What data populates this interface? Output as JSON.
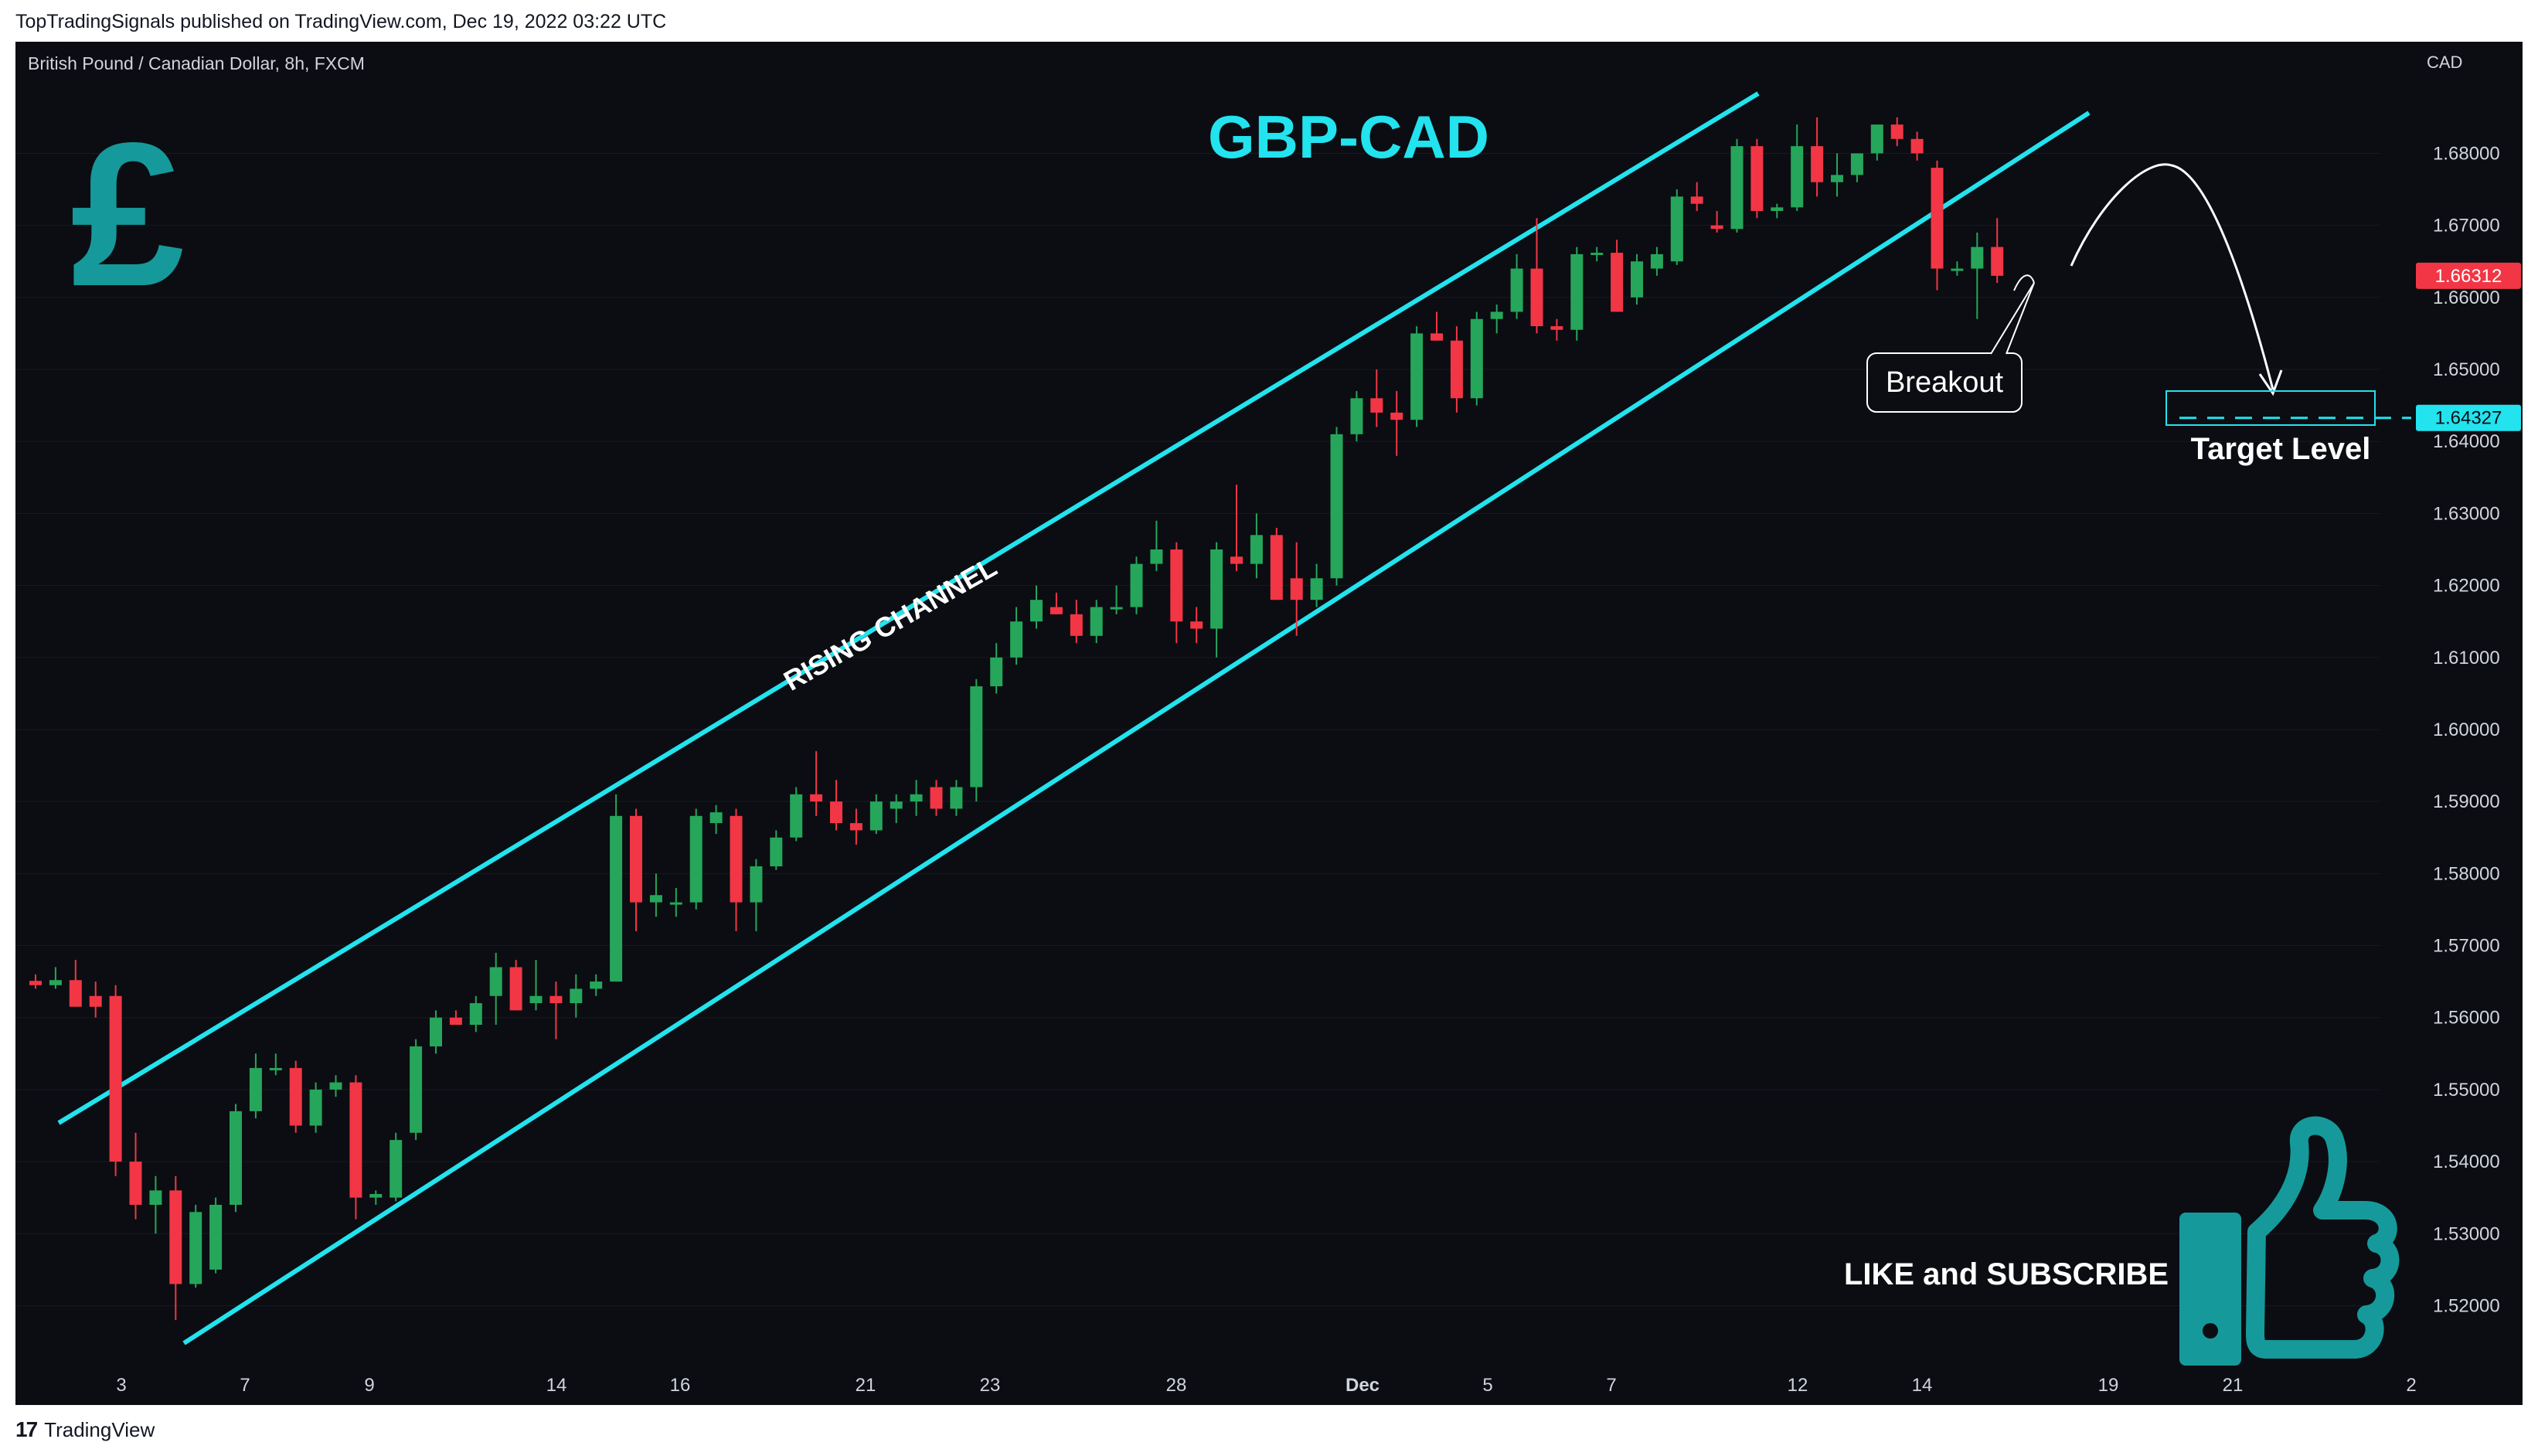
{
  "header": {
    "published": "TopTradingSignals published on TradingView.com, Dec 19, 2022 03:22 UTC"
  },
  "footer": {
    "brand": "TradingView",
    "logo_glyph": "17"
  },
  "chart_header": {
    "symbol": "British Pound / Canadian Dollar, 8h, FXCM",
    "currency": "CAD"
  },
  "annotations": {
    "title": "GBP-CAD",
    "pound_glyph": "£",
    "channel_label": "RISING CHANNEL",
    "breakout": "Breakout",
    "target": "Target Level",
    "cta": "LIKE and SUBSCRIBE"
  },
  "colors": {
    "background": "#0b0d12",
    "bull": "#26a65b",
    "bear": "#f23645",
    "channel": "#22e3ee",
    "accent_teal": "#1aa3a3",
    "axis_text": "#d1d4dc"
  },
  "chart_data": {
    "type": "candlestick",
    "timeframe": "8h",
    "ylim": [
      1.512,
      1.6955
    ],
    "y_ticks": [
      "1.52000",
      "1.53000",
      "1.54000",
      "1.55000",
      "1.56000",
      "1.57000",
      "1.58000",
      "1.59000",
      "1.60000",
      "1.61000",
      "1.62000",
      "1.63000",
      "1.64000",
      "1.65000",
      "1.66000",
      "1.67000",
      "1.68000"
    ],
    "x_ticks": [
      "3",
      "7",
      "9",
      "14",
      "16",
      "21",
      "23",
      "28",
      "Dec",
      "5",
      "7",
      "12",
      "14",
      "19",
      "21",
      "2"
    ],
    "last_price": "1.66312",
    "target_price": "1.64327",
    "target_value": 1.64327,
    "ohlc": [
      [
        1.5651,
        1.566,
        1.564,
        1.5645
      ],
      [
        1.5645,
        1.567,
        1.564,
        1.5652
      ],
      [
        1.5652,
        1.568,
        1.563,
        1.5615
      ],
      [
        1.563,
        1.565,
        1.56,
        1.5615
      ],
      [
        1.563,
        1.5645,
        1.538,
        1.54
      ],
      [
        1.54,
        1.544,
        1.532,
        1.534
      ],
      [
        1.534,
        1.538,
        1.53,
        1.536
      ],
      [
        1.536,
        1.538,
        1.518,
        1.523
      ],
      [
        1.523,
        1.534,
        1.5225,
        1.533
      ],
      [
        1.525,
        1.535,
        1.5245,
        1.534
      ],
      [
        1.534,
        1.548,
        1.533,
        1.547
      ],
      [
        1.547,
        1.555,
        1.546,
        1.553
      ],
      [
        1.553,
        1.555,
        1.552,
        1.553
      ],
      [
        1.553,
        1.554,
        1.544,
        1.545
      ],
      [
        1.545,
        1.551,
        1.544,
        1.55
      ],
      [
        1.55,
        1.552,
        1.549,
        1.551
      ],
      [
        1.551,
        1.552,
        1.532,
        1.535
      ],
      [
        1.535,
        1.536,
        1.534,
        1.5355
      ],
      [
        1.535,
        1.544,
        1.5345,
        1.543
      ],
      [
        1.544,
        1.557,
        1.543,
        1.556
      ],
      [
        1.556,
        1.561,
        1.555,
        1.56
      ],
      [
        1.56,
        1.561,
        1.559,
        1.559
      ],
      [
        1.559,
        1.563,
        1.558,
        1.562
      ],
      [
        1.563,
        1.569,
        1.559,
        1.567
      ],
      [
        1.567,
        1.568,
        1.561,
        1.561
      ],
      [
        1.562,
        1.568,
        1.561,
        1.563
      ],
      [
        1.563,
        1.565,
        1.557,
        1.562
      ],
      [
        1.562,
        1.566,
        1.56,
        1.564
      ],
      [
        1.564,
        1.566,
        1.563,
        1.565
      ],
      [
        1.565,
        1.591,
        1.565,
        1.588
      ],
      [
        1.588,
        1.589,
        1.572,
        1.576
      ],
      [
        1.576,
        1.58,
        1.574,
        1.577
      ],
      [
        1.576,
        1.578,
        1.574,
        1.576
      ],
      [
        1.576,
        1.589,
        1.575,
        1.588
      ],
      [
        1.587,
        1.5895,
        1.5855,
        1.5885
      ],
      [
        1.588,
        1.589,
        1.572,
        1.576
      ],
      [
        1.576,
        1.582,
        1.572,
        1.581
      ],
      [
        1.581,
        1.586,
        1.5805,
        1.585
      ],
      [
        1.585,
        1.592,
        1.5845,
        1.591
      ],
      [
        1.591,
        1.597,
        1.588,
        1.59
      ],
      [
        1.59,
        1.593,
        1.586,
        1.587
      ],
      [
        1.587,
        1.589,
        1.584,
        1.586
      ],
      [
        1.586,
        1.591,
        1.5855,
        1.59
      ],
      [
        1.589,
        1.591,
        1.587,
        1.59
      ],
      [
        1.59,
        1.593,
        1.588,
        1.591
      ],
      [
        1.592,
        1.593,
        1.588,
        1.589
      ],
      [
        1.589,
        1.593,
        1.588,
        1.592
      ],
      [
        1.592,
        1.607,
        1.59,
        1.606
      ],
      [
        1.606,
        1.612,
        1.605,
        1.61
      ],
      [
        1.61,
        1.617,
        1.609,
        1.615
      ],
      [
        1.615,
        1.62,
        1.614,
        1.618
      ],
      [
        1.617,
        1.619,
        1.616,
        1.616
      ],
      [
        1.616,
        1.618,
        1.612,
        1.613
      ],
      [
        1.613,
        1.618,
        1.612,
        1.617
      ],
      [
        1.617,
        1.62,
        1.616,
        1.617
      ],
      [
        1.617,
        1.624,
        1.616,
        1.623
      ],
      [
        1.623,
        1.629,
        1.622,
        1.625
      ],
      [
        1.625,
        1.626,
        1.612,
        1.615
      ],
      [
        1.615,
        1.617,
        1.612,
        1.614
      ],
      [
        1.614,
        1.626,
        1.61,
        1.625
      ],
      [
        1.624,
        1.634,
        1.622,
        1.623
      ],
      [
        1.623,
        1.63,
        1.621,
        1.627
      ],
      [
        1.627,
        1.628,
        1.618,
        1.618
      ],
      [
        1.621,
        1.626,
        1.613,
        1.618
      ],
      [
        1.618,
        1.623,
        1.617,
        1.621
      ],
      [
        1.621,
        1.642,
        1.62,
        1.641
      ],
      [
        1.641,
        1.647,
        1.64,
        1.646
      ],
      [
        1.646,
        1.65,
        1.642,
        1.644
      ],
      [
        1.644,
        1.647,
        1.638,
        1.643
      ],
      [
        1.643,
        1.656,
        1.642,
        1.655
      ],
      [
        1.655,
        1.658,
        1.654,
        1.654
      ],
      [
        1.654,
        1.656,
        1.644,
        1.646
      ],
      [
        1.646,
        1.658,
        1.645,
        1.657
      ],
      [
        1.657,
        1.659,
        1.655,
        1.658
      ],
      [
        1.658,
        1.666,
        1.657,
        1.664
      ],
      [
        1.664,
        1.671,
        1.655,
        1.656
      ],
      [
        1.656,
        1.657,
        1.654,
        1.6555
      ],
      [
        1.6555,
        1.667,
        1.654,
        1.666
      ],
      [
        1.666,
        1.667,
        1.665,
        1.6662
      ],
      [
        1.6662,
        1.668,
        1.658,
        1.658
      ],
      [
        1.66,
        1.666,
        1.659,
        1.665
      ],
      [
        1.664,
        1.667,
        1.663,
        1.666
      ],
      [
        1.665,
        1.675,
        1.6645,
        1.674
      ],
      [
        1.674,
        1.676,
        1.672,
        1.673
      ],
      [
        1.67,
        1.672,
        1.669,
        1.6695
      ],
      [
        1.6695,
        1.682,
        1.669,
        1.681
      ],
      [
        1.681,
        1.682,
        1.671,
        1.672
      ],
      [
        1.672,
        1.673,
        1.671,
        1.6725
      ],
      [
        1.6725,
        1.684,
        1.672,
        1.681
      ],
      [
        1.681,
        1.685,
        1.674,
        1.676
      ],
      [
        1.676,
        1.68,
        1.674,
        1.677
      ],
      [
        1.677,
        1.68,
        1.676,
        1.68
      ],
      [
        1.68,
        1.684,
        1.679,
        1.684
      ],
      [
        1.684,
        1.685,
        1.681,
        1.682
      ],
      [
        1.682,
        1.683,
        1.679,
        1.68
      ],
      [
        1.678,
        1.679,
        1.661,
        1.664
      ],
      [
        1.664,
        1.665,
        1.663,
        1.664
      ],
      [
        1.664,
        1.669,
        1.657,
        1.667
      ],
      [
        1.667,
        1.671,
        1.662,
        1.663
      ]
    ]
  }
}
